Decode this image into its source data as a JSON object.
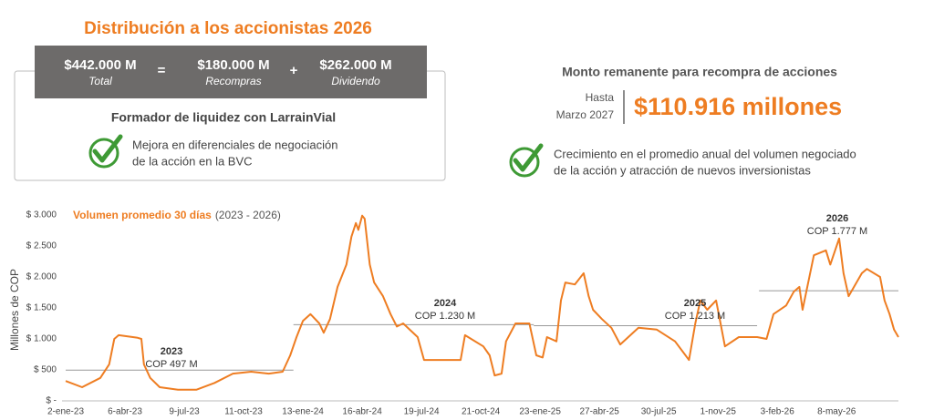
{
  "header": {
    "title": "Distribución a los accionistas 2026"
  },
  "summary": {
    "total": {
      "amount": "$442.000 M",
      "label": "Total"
    },
    "equals": "=",
    "buybacks": {
      "amount": "$180.000 M",
      "label": "Recompras"
    },
    "plus": "+",
    "dividend": {
      "amount": "$262.000 M",
      "label": "Dividendo"
    }
  },
  "liquidity": {
    "title": "Formador de liquidez con LarrainVial",
    "lines": [
      "Mejora en diferenciales de negociación",
      "de la acción en la BVC"
    ]
  },
  "buyback_remaining": {
    "title": "Monto remanente para recompra de acciones",
    "until": [
      "Hasta",
      "Marzo 2027"
    ],
    "amount": "$110.916 millones"
  },
  "growth": {
    "lines": [
      "Crecimiento en el promedio anual del volumen negociado",
      "de la acción y atracción de nuevos inversionistas"
    ]
  },
  "chart_data": {
    "type": "line",
    "subtitle": "(2023 - 2026)",
    "ylabel": "Millones de COP",
    "xlim": [
      "2-ene-23",
      "14-ago-26"
    ],
    "xticks": [
      "2-ene-23",
      "6-abr-23",
      "9-jul-23",
      "11-oct-23",
      "13-ene-24",
      "16-abr-24",
      "19-jul-24",
      "21-oct-24",
      "23-ene-25",
      "27-abr-25",
      "30-jul-25",
      "1-nov-25",
      "3-feb-26",
      "8-may-26"
    ],
    "ylim": [
      0,
      3000
    ],
    "yticks": [
      {
        "value": 0,
        "label": "$ -"
      },
      {
        "value": 500,
        "label": "$ 500"
      },
      {
        "value": 1000,
        "label": "$ 1.000"
      },
      {
        "value": 1500,
        "label": "$ 1.500"
      },
      {
        "value": 2000,
        "label": "$ 2.000"
      },
      {
        "value": 2500,
        "label": "$ 2.500"
      },
      {
        "value": 3000,
        "label": "$ 3.000"
      }
    ],
    "x": [
      "2-ene-23",
      "28-ene-23",
      "26-feb-23",
      "12-mar-23",
      "20-mar-23",
      "27-mar-23",
      "25-abr-23",
      "2-may-23",
      "6-may-23",
      "16-may-23",
      "31-may-23",
      "29-jun-23",
      "28-jul-23",
      "26-ago-23",
      "24-sep-23",
      "23-oct-23",
      "20-nov-23",
      "12-dic-23",
      "24-dic-23",
      "3-ene-24",
      "13-ene-24",
      "25-ene-24",
      "8-feb-24",
      "15-feb-24",
      "25-feb-24",
      "8-mar-24",
      "22-mar-24",
      "30-mar-24",
      "6-abr-24",
      "10-abr-24",
      "16-abr-24",
      "20-abr-24",
      "28-abr-24",
      "5-may-24",
      "19-may-24",
      "31-may-24",
      "10-jun-24",
      "20-jun-24",
      "13-jul-24",
      "23-jul-24",
      "14-ago-24",
      "19-sep-24",
      "26-sep-24",
      "25-oct-24",
      "4-nov-24",
      "12-nov-24",
      "23-nov-24",
      "30-nov-24",
      "15-dic-24",
      "6-ene-25",
      "17-ene-25",
      "27-ene-25",
      "3-feb-25",
      "18-feb-25",
      "25-feb-25",
      "4-mar-25",
      "19-mar-25",
      "2-abr-25",
      "10-abr-25",
      "17-abr-25",
      "1-may-25",
      "16-may-25",
      "30-may-25",
      "28-jun-25",
      "27-jul-25",
      "25-ago-25",
      "16-sep-25",
      "26-sep-25",
      "4-oct-25",
      "15-oct-25",
      "29-oct-25",
      "5-nov-25",
      "12-nov-25",
      "4-dic-25",
      "2-ene-26",
      "17-ene-26",
      "28-ene-26",
      "17-feb-26",
      "1-mar-26",
      "10-mar-26",
      "15-mar-26",
      "27-mar-26",
      "2-abr-26",
      "21-abr-26",
      "28-abr-26",
      "12-may-26",
      "19-may-26",
      "27-may-26",
      "17-jun-26",
      "25-jun-26",
      "16-jul-26",
      "23-jul-26",
      "31-jul-26",
      "7-ago-26",
      "14-ago-26"
    ],
    "series": [
      {
        "name": "Volumen promedio 30 días",
        "color": "#ee7d22",
        "values": [
          320,
          220,
          370,
          590,
          1000,
          1060,
          1020,
          1000,
          590,
          370,
          220,
          180,
          180,
          290,
          440,
          470,
          440,
          470,
          735,
          1030,
          1290,
          1400,
          1250,
          1100,
          1320,
          1840,
          2200,
          2650,
          2870,
          2760,
          2990,
          2940,
          2200,
          1910,
          1690,
          1400,
          1200,
          1250,
          1030,
          660,
          660,
          660,
          1060,
          880,
          735,
          410,
          440,
          960,
          1250,
          1250,
          735,
          700,
          1030,
          960,
          1620,
          1910,
          1880,
          2060,
          1690,
          1470,
          1320,
          1180,
          910,
          1180,
          1150,
          960,
          660,
          1250,
          1620,
          1470,
          1620,
          1250,
          880,
          1030,
          1030,
          1000,
          1400,
          1540,
          1760,
          1840,
          1470,
          2060,
          2350,
          2430,
          2200,
          2620,
          2060,
          1690,
          2060,
          2130,
          2000,
          1620,
          1400,
          1150,
          1030
        ]
      }
    ],
    "averages": [
      {
        "label": "2023",
        "value": 497,
        "value_label": "COP 497 M",
        "x": [
          "2-ene-23",
          "29-dic-23"
        ]
      },
      {
        "label": "2024",
        "value": 1230,
        "value_label": "COP 1.230 M",
        "x": [
          "29-dic-23",
          "13-ene-25"
        ]
      },
      {
        "label": "2025",
        "value": 1213,
        "value_label": "COP 1.213 M",
        "x": [
          "13-ene-25",
          "2-ene-26"
        ]
      },
      {
        "label": "2026",
        "value": 1777,
        "value_label": "COP 1.777 M",
        "x": [
          "5-ene-26",
          "14-ago-26"
        ]
      }
    ],
    "average_color": "#999999"
  }
}
